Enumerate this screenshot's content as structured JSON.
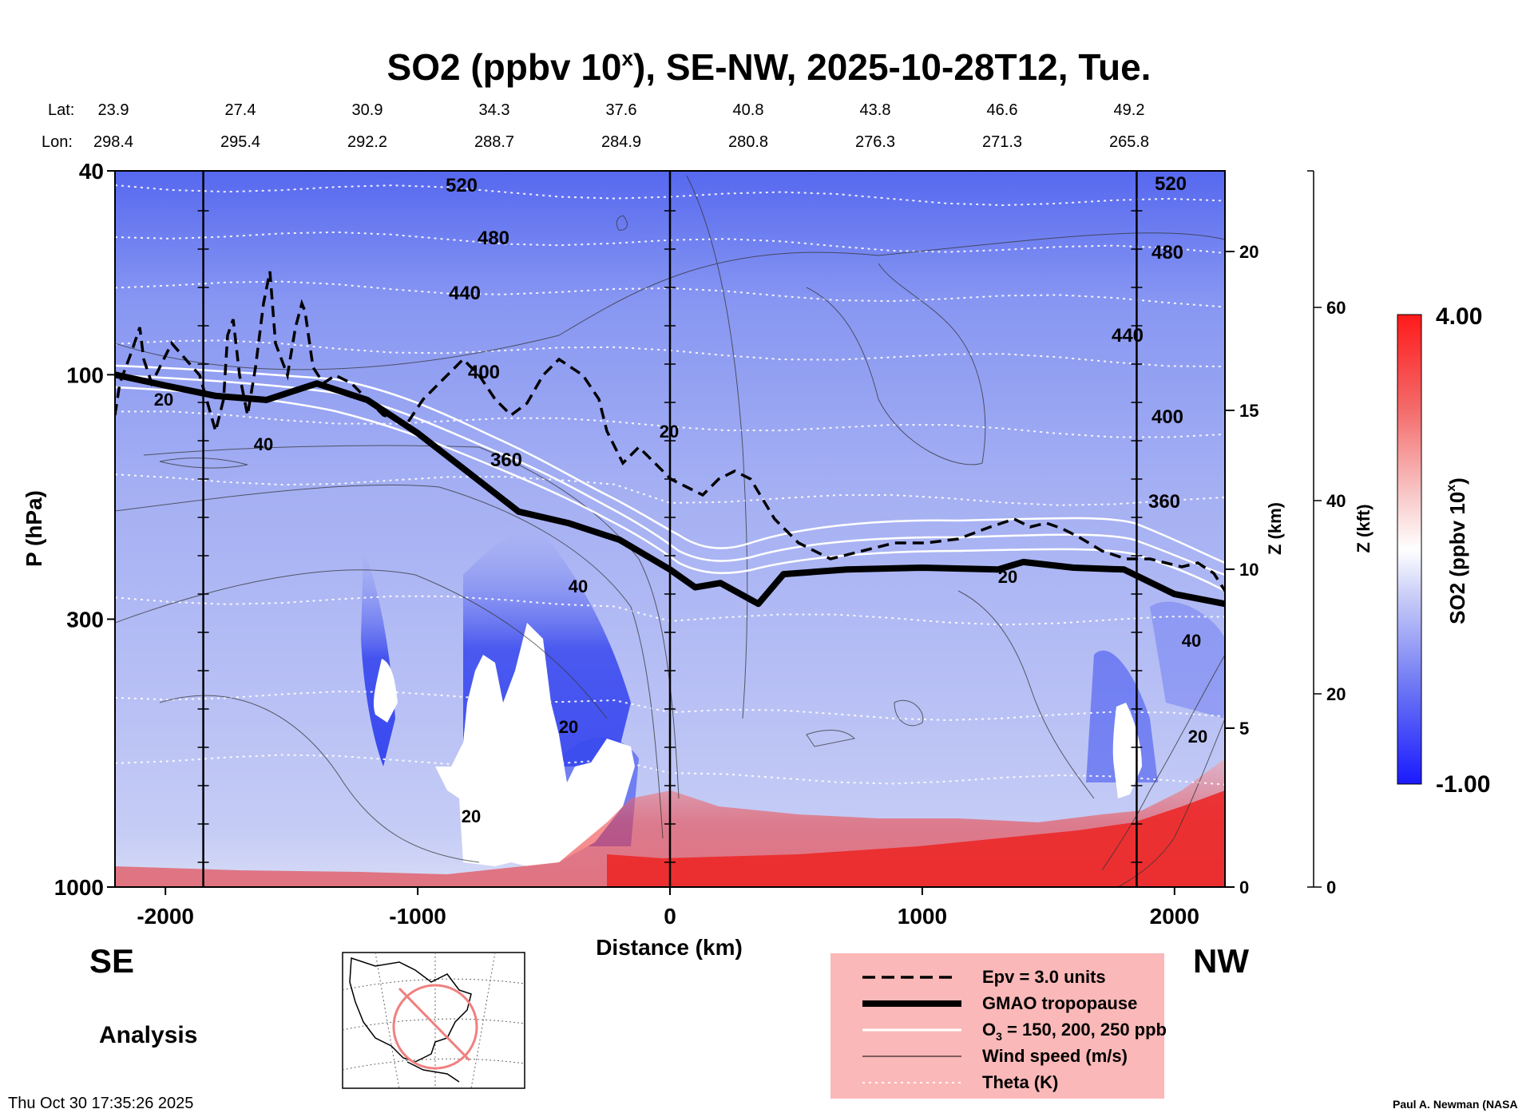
{
  "chart_data": {
    "type": "heatmap",
    "title_main": "SO2 (ppbv 10",
    "title_sup": "x",
    "title_rest": "), SE-NW, 2025-10-28T12, Tue.",
    "lat_label": "Lat:",
    "lon_label": "Lon:",
    "lat": [
      "23.9",
      "27.4",
      "30.9",
      "34.3",
      "37.6",
      "40.8",
      "43.8",
      "46.6",
      "49.2"
    ],
    "lon": [
      "298.4",
      "295.4",
      "292.2",
      "288.7",
      "284.9",
      "280.8",
      "276.3",
      "271.3",
      "265.8"
    ],
    "xlabel": "Distance (km)",
    "xlim": [
      -2200,
      2200
    ],
    "x_ticks": [
      "-2000",
      "-1000",
      "0",
      "1000",
      "2000"
    ],
    "x_tick_values": [
      -2000,
      -1000,
      0,
      1000,
      2000
    ],
    "ylabel": "P (hPa)",
    "ylim": [
      1000,
      40
    ],
    "y_ticks": [
      "40",
      "100",
      "300",
      "1000"
    ],
    "y_tick_values": [
      40,
      100,
      300,
      1000
    ],
    "z_km_label": "Z (km)",
    "z_km_ticks": [
      "0",
      "5",
      "10",
      "15",
      "20"
    ],
    "z_kft_label": "Z (kft)",
    "z_kft_ticks": [
      "0",
      "20",
      "40",
      "60"
    ],
    "vertical_lines_km": [
      -1850,
      0,
      1850
    ],
    "left_end": "SE",
    "right_end": "NW",
    "analysis_label": "Analysis",
    "timestamp": "Thu Oct 30 17:35:26 2025",
    "credit": "Paul A. Newman (NASA",
    "colorbar": {
      "label_main": "SO2 (ppbv 10",
      "label_sup": "x",
      "label_rest": ")",
      "max": "4.00",
      "min": "-1.00",
      "max_value": 4.0,
      "min_value": -1.0,
      "color_low": "#1a1aff",
      "color_mid": "#ffffff",
      "color_high": "#ff1a1a"
    },
    "theta_labels": [
      "520",
      "480",
      "440",
      "400",
      "360"
    ],
    "theta_contours_K": [
      360,
      400,
      440,
      480,
      520
    ],
    "wind_labels": [
      "20",
      "40"
    ],
    "tropopause_hPa": [
      [
        -2200,
        100
      ],
      [
        -2000,
        105
      ],
      [
        -1800,
        110
      ],
      [
        -1600,
        112
      ],
      [
        -1400,
        104
      ],
      [
        -1200,
        112
      ],
      [
        -1000,
        130
      ],
      [
        -800,
        155
      ],
      [
        -600,
        185
      ],
      [
        -400,
        195
      ],
      [
        -200,
        210
      ],
      [
        0,
        240
      ],
      [
        100,
        260
      ],
      [
        200,
        255
      ],
      [
        350,
        280
      ],
      [
        450,
        245
      ],
      [
        700,
        240
      ],
      [
        1000,
        238
      ],
      [
        1300,
        240
      ],
      [
        1400,
        232
      ],
      [
        1600,
        238
      ],
      [
        1800,
        240
      ],
      [
        2000,
        268
      ],
      [
        2200,
        280
      ]
    ],
    "legend": {
      "epv": "Epv = 3.0 units",
      "tropopause": "GMAO tropopause",
      "o3_pre": "O",
      "o3_sub": "3",
      "o3_post": " = 150, 200, 250 ppb",
      "wind": "Wind speed (m/s)",
      "theta": "Theta (K)"
    }
  }
}
